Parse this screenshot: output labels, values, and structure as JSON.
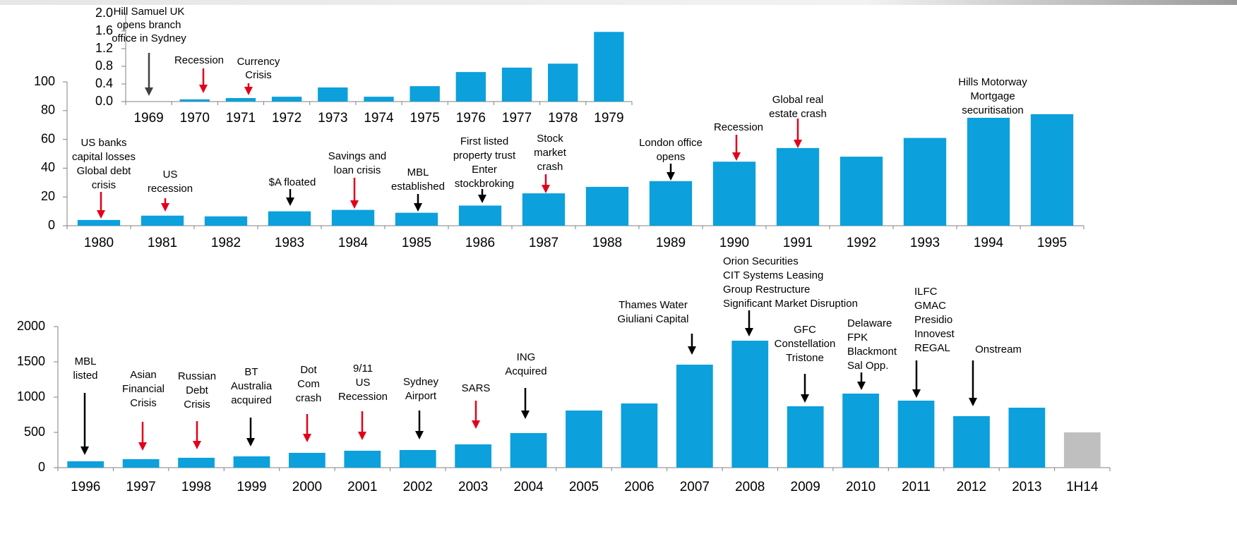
{
  "chart_data": [
    {
      "type": "bar",
      "categories": [
        "1969",
        "1970",
        "1971",
        "1972",
        "1973",
        "1974",
        "1975",
        "1976",
        "1977",
        "1978",
        "1979"
      ],
      "values": [
        0,
        0.05,
        0.08,
        0.11,
        0.32,
        0.11,
        0.35,
        0.67,
        0.77,
        0.86,
        1.58
      ],
      "color": "#0ca0dc",
      "ylim": [
        0,
        2
      ],
      "yticks": [
        {
          "value": 0,
          "label": "0.0"
        },
        0.4,
        0.8,
        1.2,
        1.6,
        {
          "value": 2,
          "label": "2.0"
        }
      ],
      "annotations": [
        {
          "lines": [
            {
              "text": "Hill Samuel UK",
              "color": "#404040"
            },
            {
              "text": "opens branch",
              "color": "#404040"
            },
            {
              "text": "office in Sydney",
              "color": "#404040"
            }
          ],
          "arrow_color": "#404040"
        },
        {
          "lines": [
            {
              "text": "Recession",
              "color": "#e2001a"
            }
          ],
          "arrow_color": "#e2001a"
        },
        {
          "lines": [
            {
              "text": "Currency",
              "color": "#e2001a"
            },
            {
              "text": "Crisis",
              "color": "#e2001a"
            }
          ],
          "arrow_color": "#e2001a"
        },
        null,
        null,
        null,
        null,
        null,
        null,
        null,
        null
      ]
    },
    {
      "type": "bar",
      "categories": [
        "1980",
        "1981",
        "1982",
        "1983",
        "1984",
        "1985",
        "1986",
        "1987",
        "1988",
        "1989",
        "1990",
        "1991",
        "1992",
        "1993",
        "1994",
        "1995"
      ],
      "values": [
        4,
        7,
        6.5,
        10,
        11,
        9,
        14,
        22.5,
        27,
        31,
        44.5,
        54,
        48,
        61,
        75,
        77.5
      ],
      "color": "#0ca0dc",
      "ylim": [
        0,
        100
      ],
      "yticks": [
        0,
        20,
        40,
        60,
        80,
        100
      ],
      "annotations": [
        {
          "lines": [
            {
              "text": "US banks",
              "color": "#e2001a"
            },
            {
              "text": "capital losses",
              "color": "#e2001a"
            },
            {
              "text": "Global debt",
              "color": "#e2001a"
            },
            {
              "text": "crisis",
              "color": "#e2001a"
            }
          ],
          "arrow_color": "#e2001a"
        },
        {
          "lines": [
            {
              "text": "US",
              "color": "#e2001a"
            },
            {
              "text": "recession",
              "color": "#e2001a"
            }
          ],
          "arrow_color": "#e2001a"
        },
        null,
        {
          "lines": [
            {
              "text": "$A floated",
              "color": "#000000"
            }
          ],
          "arrow_color": "#000000"
        },
        {
          "lines": [
            {
              "text": "Savings and",
              "color": "#e2001a"
            },
            {
              "text": "loan crisis",
              "color": "#e2001a"
            }
          ],
          "arrow_color": "#e2001a"
        },
        {
          "lines": [
            {
              "text": "MBL",
              "color": "#000000"
            },
            {
              "text": "established",
              "color": "#000000"
            }
          ],
          "arrow_color": "#000000"
        },
        {
          "lines": [
            {
              "text": "First listed",
              "color": "#000000"
            },
            {
              "text": "property trust",
              "color": "#000000"
            },
            {
              "text": "Enter",
              "color": "#000000"
            },
            {
              "text": "stockbroking",
              "color": "#000000"
            }
          ],
          "arrow_color": "#000000"
        },
        {
          "lines": [
            {
              "text": "Stock",
              "color": "#e2001a"
            },
            {
              "text": "market",
              "color": "#e2001a"
            },
            {
              "text": "crash",
              "color": "#e2001a"
            }
          ],
          "arrow_color": "#e2001a"
        },
        null,
        {
          "lines": [
            {
              "text": "London office",
              "color": "#000000"
            },
            {
              "text": "opens",
              "color": "#000000"
            }
          ],
          "arrow_color": "#000000"
        },
        {
          "lines": [
            {
              "text": "Recession",
              "color": "#e2001a"
            }
          ],
          "arrow_color": "#e2001a"
        },
        {
          "lines": [
            {
              "text": "Global real",
              "color": "#e2001a"
            },
            {
              "text": "estate crash",
              "color": "#e2001a"
            }
          ],
          "arrow_color": "#e2001a"
        },
        null,
        null,
        {
          "lines": [
            {
              "text": "Hills Motorway",
              "color": "#000000"
            },
            {
              "text": "Mortgage",
              "color": "#000000"
            },
            {
              "text": "securitisation",
              "color": "#000000"
            }
          ]
        },
        null
      ]
    },
    {
      "type": "bar",
      "categories": [
        "1996",
        "1997",
        "1998",
        "1999",
        "2000",
        "2001",
        "2002",
        "2003",
        "2004",
        "2005",
        "2006",
        "2007",
        "2008",
        "2009",
        "2010",
        "2011",
        "2012",
        "2013",
        "1H14"
      ],
      "values": [
        90,
        120,
        140,
        160,
        210,
        240,
        250,
        330,
        490,
        810,
        910,
        1460,
        1800,
        870,
        1050,
        950,
        730,
        850,
        500
      ],
      "colors": [
        "#0ca0dc",
        "#0ca0dc",
        "#0ca0dc",
        "#0ca0dc",
        "#0ca0dc",
        "#0ca0dc",
        "#0ca0dc",
        "#0ca0dc",
        "#0ca0dc",
        "#0ca0dc",
        "#0ca0dc",
        "#0ca0dc",
        "#0ca0dc",
        "#0ca0dc",
        "#0ca0dc",
        "#0ca0dc",
        "#0ca0dc",
        "#0ca0dc",
        "#bfbfbf"
      ],
      "ylim": [
        0,
        2000
      ],
      "yticks": [
        0,
        500,
        1000,
        1500,
        2000
      ],
      "annotations": [
        {
          "lines": [
            {
              "text": "MBL",
              "color": "#000000"
            },
            {
              "text": "listed",
              "color": "#000000"
            }
          ],
          "arrow_color": "#000000"
        },
        {
          "lines": [
            {
              "text": "Asian",
              "color": "#e2001a"
            },
            {
              "text": "Financial",
              "color": "#e2001a"
            },
            {
              "text": "Crisis",
              "color": "#e2001a"
            }
          ],
          "arrow_color": "#e2001a"
        },
        {
          "lines": [
            {
              "text": "Russian",
              "color": "#e2001a"
            },
            {
              "text": "Debt",
              "color": "#e2001a"
            },
            {
              "text": "Crisis",
              "color": "#e2001a"
            }
          ],
          "arrow_color": "#e2001a"
        },
        {
          "lines": [
            {
              "text": "BT",
              "color": "#000000"
            },
            {
              "text": "Australia",
              "color": "#000000"
            },
            {
              "text": "acquired",
              "color": "#000000"
            }
          ],
          "arrow_color": "#000000"
        },
        {
          "lines": [
            {
              "text": "Dot",
              "color": "#e2001a"
            },
            {
              "text": "Com",
              "color": "#e2001a"
            },
            {
              "text": "crash",
              "color": "#e2001a"
            }
          ],
          "arrow_color": "#e2001a"
        },
        {
          "lines": [
            {
              "text": "9/11",
              "color": "#e2001a"
            },
            {
              "text": "US",
              "color": "#e2001a"
            },
            {
              "text": "Recession",
              "color": "#e2001a"
            }
          ],
          "arrow_color": "#e2001a"
        },
        {
          "lines": [
            {
              "text": "Sydney",
              "color": "#000000"
            },
            {
              "text": "Airport",
              "color": "#000000"
            }
          ],
          "arrow_color": "#000000"
        },
        {
          "lines": [
            {
              "text": "SARS",
              "color": "#e2001a"
            }
          ],
          "arrow_color": "#e2001a"
        },
        {
          "lines": [
            {
              "text": "ING",
              "color": "#000000"
            },
            {
              "text": "Acquired",
              "color": "#000000"
            }
          ],
          "arrow_color": "#000000"
        },
        null,
        null,
        {
          "lines": [
            {
              "text": "Thames Water",
              "color": "#000000"
            },
            {
              "text": "Giuliani Capital",
              "color": "#000000"
            }
          ],
          "arrow_color": "#000000"
        },
        {
          "lines": [
            {
              "text": "Orion Securities",
              "color": "#000000"
            },
            {
              "text": "CIT Systems Leasing",
              "color": "#000000"
            },
            {
              "text": "Group Restructure",
              "color": "#000000"
            },
            {
              "text": "Significant Market Disruption",
              "color": "#e2001a"
            }
          ],
          "arrow_color": "#000000"
        },
        {
          "lines": [
            {
              "text": "GFC",
              "color": "#e2001a"
            },
            {
              "text": "Constellation",
              "color": "#000000"
            },
            {
              "text": "Tristone",
              "color": "#000000"
            }
          ],
          "arrow_color": "#000000"
        },
        {
          "lines": [
            {
              "text": "Delaware",
              "color": "#000000"
            },
            {
              "text": "FPK",
              "color": "#000000"
            },
            {
              "text": "Blackmont",
              "color": "#000000"
            },
            {
              "text": "Sal Opp.",
              "color": "#000000"
            }
          ],
          "arrow_color": "#000000"
        },
        {
          "lines": [
            {
              "text": "ILFC",
              "color": "#404040"
            },
            {
              "text": "GMAC",
              "color": "#404040"
            },
            {
              "text": "Presidio",
              "color": "#404040"
            },
            {
              "text": "Innovest",
              "color": "#404040"
            },
            {
              "text": "REGAL",
              "color": "#404040"
            }
          ],
          "arrow_color": "#000000"
        },
        {
          "lines": [
            {
              "text": "Onstream",
              "color": "#404040"
            }
          ],
          "arrow_color": "#000000"
        },
        null,
        null
      ]
    }
  ]
}
